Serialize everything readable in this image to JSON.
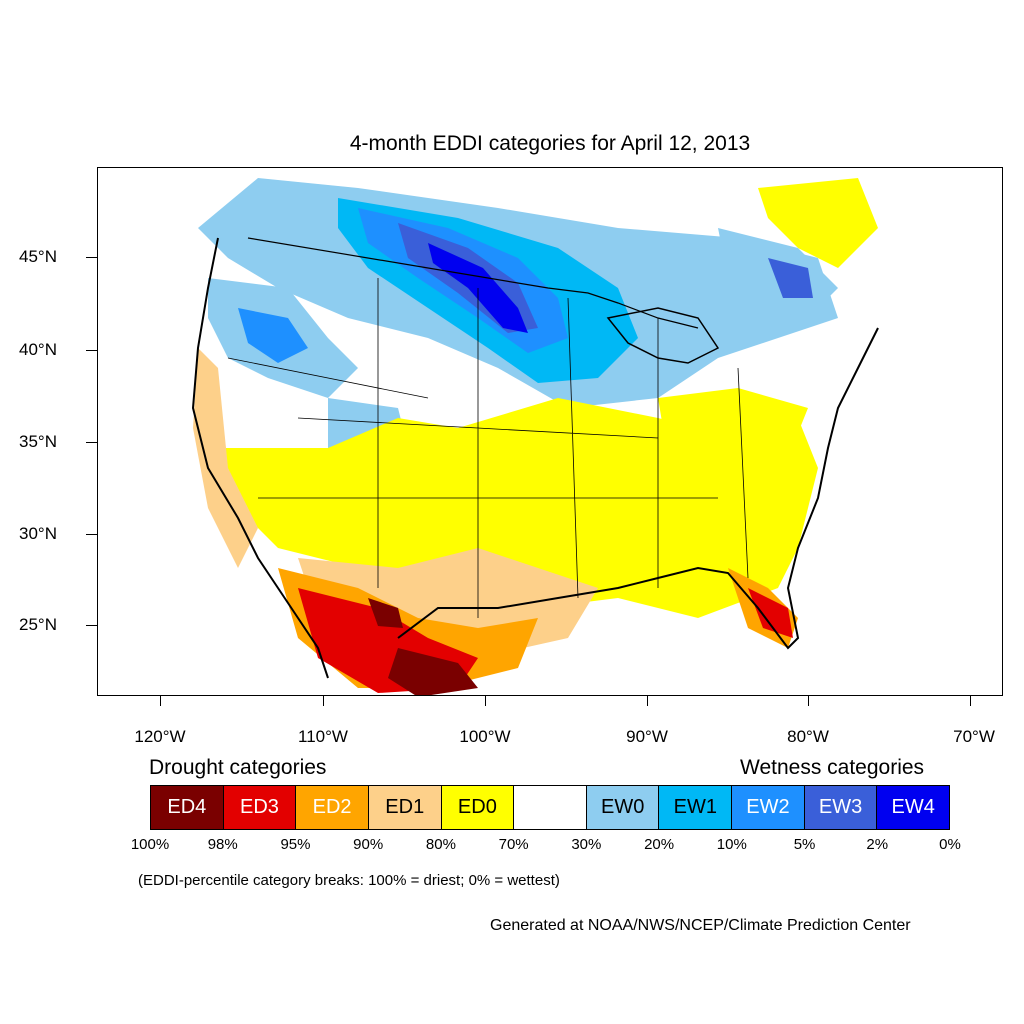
{
  "title": "4-month EDDI categories for April 12, 2013",
  "axes": {
    "lat_labels": [
      "45°N",
      "40°N",
      "35°N",
      "30°N",
      "25°N"
    ],
    "lon_labels": [
      "120°W",
      "110°W",
      "100°W",
      "90°W",
      "80°W",
      "70°W"
    ]
  },
  "legend": {
    "drought_title": "Drought categories",
    "wetness_title": "Wetness categories",
    "categories": [
      {
        "label": "ED4",
        "color": "#7a0000",
        "text_color": "#ffffff"
      },
      {
        "label": "ED3",
        "color": "#e30000",
        "text_color": "#ffffff"
      },
      {
        "label": "ED2",
        "color": "#ffa500",
        "text_color": "#ffffff"
      },
      {
        "label": "ED1",
        "color": "#fdd08a",
        "text_color": "#000000"
      },
      {
        "label": "ED0",
        "color": "#ffff00",
        "text_color": "#000000"
      },
      {
        "label": "",
        "color": "#ffffff",
        "text_color": "#000000"
      },
      {
        "label": "EW0",
        "color": "#8ecdf0",
        "text_color": "#000000"
      },
      {
        "label": "EW1",
        "color": "#00b8f5",
        "text_color": "#000000"
      },
      {
        "label": "EW2",
        "color": "#1e90ff",
        "text_color": "#ffffff"
      },
      {
        "label": "EW3",
        "color": "#3a5fd9",
        "text_color": "#ffffff"
      },
      {
        "label": "EW4",
        "color": "#0000f0",
        "text_color": "#ffffff"
      }
    ],
    "breaks": [
      "100%",
      "98%",
      "95%",
      "90%",
      "80%",
      "70%",
      "30%",
      "20%",
      "10%",
      "5%",
      "2%",
      "0%"
    ]
  },
  "note": "(EDDI-percentile category breaks: 100% = driest; 0% = wettest)",
  "credit": "Generated at NOAA/NWS/NCEP/Climate Prediction Center"
}
